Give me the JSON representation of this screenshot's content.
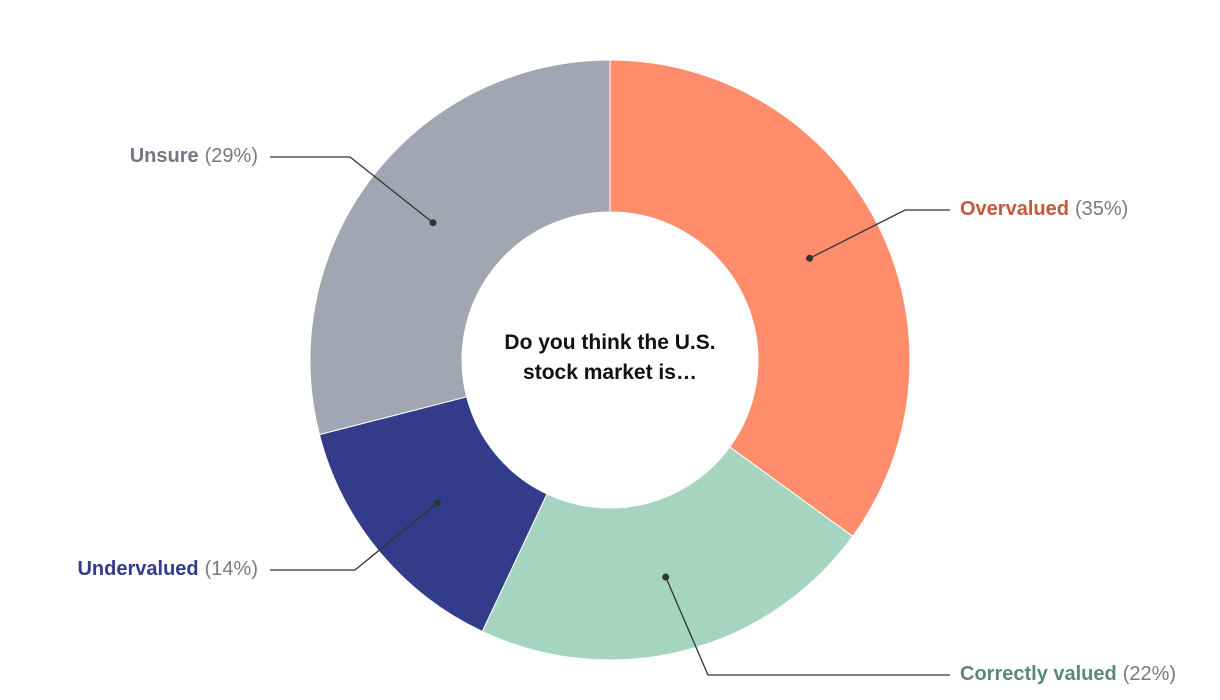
{
  "chart_data": {
    "type": "donut",
    "title": "Do you think the U.S. stock market is…",
    "categories": [
      "Overvalued",
      "Correctly valued",
      "Undervalued",
      "Unsure"
    ],
    "values": [
      35,
      22,
      14,
      29
    ],
    "value_labels": [
      "(35%)",
      "(22%)",
      "(14%)",
      "(29%)"
    ],
    "colors": [
      "#ff8c6b",
      "#a5d5c1",
      "#323c8a",
      "#a2a6b2"
    ],
    "label_colors": [
      "#c4573c",
      "#5a8a72",
      "#323c8a",
      "#737783"
    ]
  }
}
